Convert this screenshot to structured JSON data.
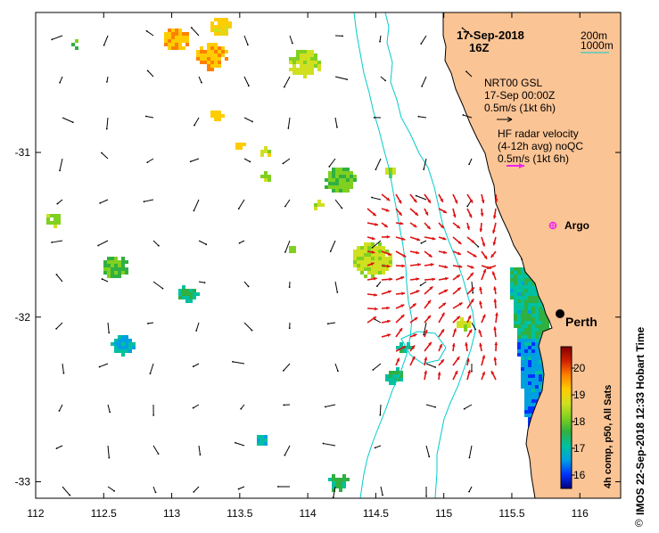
{
  "header": {
    "date": "17-Sep-2018",
    "time": "16Z",
    "contour_1": "200m",
    "contour_2": "1000m"
  },
  "legend": {
    "model_title": "NRT00 GSL",
    "model_time": "17-Sep 00:00Z",
    "model_scale": "0.5m/s (1kt 6h)",
    "radar_title": "HF radar velocity",
    "radar_sub": "(4-12h avg) noQC",
    "radar_scale": "0.5m/s (1kt 6h)"
  },
  "places": {
    "argo": "Argo",
    "perth": "Perth"
  },
  "colorbar": {
    "title": "4h comp, p50, All Sats",
    "min": 15.5,
    "max": 20.8,
    "ticks": [
      "20",
      "19",
      "18",
      "17",
      "16"
    ],
    "colors": [
      "#00007a",
      "#0033ff",
      "#00a0e0",
      "#00c0a0",
      "#30b040",
      "#80d020",
      "#d0e020",
      "#ffcc00",
      "#ff8000",
      "#d02000",
      "#800000"
    ]
  },
  "axes": {
    "x_ticks": [
      "112",
      "112.5",
      "113",
      "113.5",
      "114",
      "114.5",
      "115",
      "115.5",
      "116"
    ],
    "x_values": [
      112,
      112.5,
      113,
      113.5,
      114,
      114.5,
      115,
      115.5,
      116
    ],
    "y_ticks": [
      "-31",
      "-32",
      "-33"
    ],
    "y_values": [
      -31,
      -32,
      -33
    ],
    "lon_range": [
      112,
      116.3
    ],
    "lat_range": [
      -30.15,
      -33.1
    ]
  },
  "credit": "IMOS 22-Sep-2018 12:33 Hobart Time",
  "copyright": "©",
  "colors": {
    "land": "#fbc495",
    "contour": "#00cccc",
    "radar": "#dd1111",
    "model": "#000000",
    "argo": "#ee22ee"
  }
}
